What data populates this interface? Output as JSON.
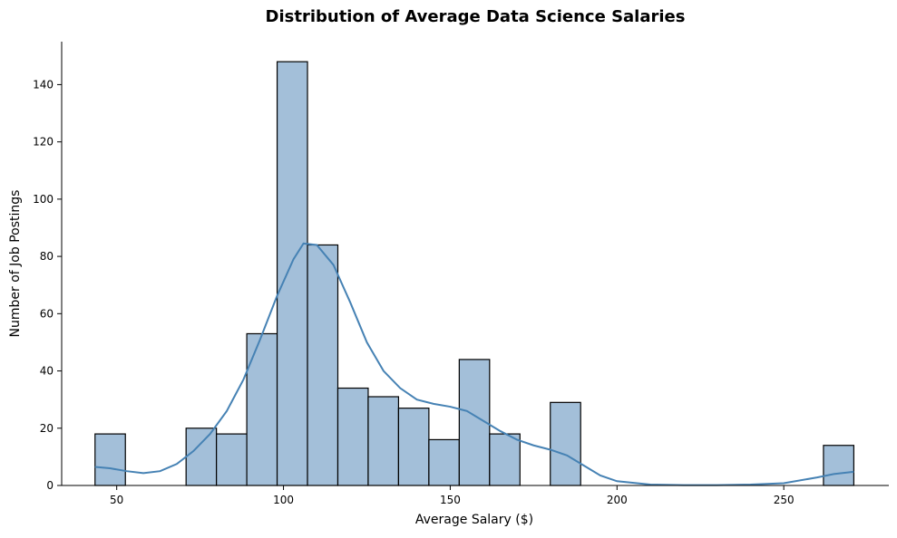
{
  "chart_data": {
    "type": "bar",
    "subtype": "histogram-with-kde",
    "title": "Distribution of Average Data Science Salaries",
    "xlabel": "Average Salary ($)",
    "ylabel": "Number of Job Postings",
    "xlim": [
      33.5,
      281.5
    ],
    "ylim": [
      0,
      155
    ],
    "xticks": [
      50,
      100,
      150,
      200,
      250
    ],
    "yticks": [
      0,
      20,
      40,
      60,
      80,
      100,
      120,
      140
    ],
    "grid": false,
    "bins": [
      {
        "x0": 43.5,
        "x1": 52.6,
        "count": 18
      },
      {
        "x0": 52.6,
        "x1": 61.7,
        "count": 0
      },
      {
        "x0": 61.7,
        "x1": 70.8,
        "count": 0
      },
      {
        "x0": 70.8,
        "x1": 79.9,
        "count": 20
      },
      {
        "x0": 79.9,
        "x1": 89.0,
        "count": 18
      },
      {
        "x0": 89.0,
        "x1": 98.1,
        "count": 53
      },
      {
        "x0": 98.1,
        "x1": 107.2,
        "count": 148
      },
      {
        "x0": 107.2,
        "x1": 116.3,
        "count": 84
      },
      {
        "x0": 116.3,
        "x1": 125.4,
        "count": 34
      },
      {
        "x0": 125.4,
        "x1": 134.5,
        "count": 31
      },
      {
        "x0": 134.5,
        "x1": 143.6,
        "count": 27
      },
      {
        "x0": 143.6,
        "x1": 152.7,
        "count": 16
      },
      {
        "x0": 152.7,
        "x1": 161.8,
        "count": 44
      },
      {
        "x0": 161.8,
        "x1": 170.9,
        "count": 18
      },
      {
        "x0": 170.9,
        "x1": 180.0,
        "count": 0
      },
      {
        "x0": 180.0,
        "x1": 189.1,
        "count": 29
      },
      {
        "x0": 189.1,
        "x1": 198.2,
        "count": 0
      },
      {
        "x0": 198.2,
        "x1": 207.3,
        "count": 0
      },
      {
        "x0": 207.3,
        "x1": 216.4,
        "count": 0
      },
      {
        "x0": 216.4,
        "x1": 225.5,
        "count": 0
      },
      {
        "x0": 225.5,
        "x1": 234.6,
        "count": 0
      },
      {
        "x0": 234.6,
        "x1": 243.7,
        "count": 0
      },
      {
        "x0": 243.7,
        "x1": 252.8,
        "count": 0
      },
      {
        "x0": 252.8,
        "x1": 261.9,
        "count": 0
      },
      {
        "x0": 261.9,
        "x1": 271.0,
        "count": 14
      }
    ],
    "kde": {
      "x": [
        43.5,
        48,
        53,
        58,
        63,
        68,
        73,
        78,
        83,
        88,
        93,
        98,
        103,
        106,
        110,
        115,
        120,
        125,
        130,
        135,
        140,
        145,
        150,
        155,
        160,
        165,
        170,
        175,
        180,
        185,
        190,
        195,
        200,
        210,
        220,
        230,
        240,
        250,
        260,
        265,
        271
      ],
      "y": [
        6.5,
        6,
        5,
        4.3,
        5,
        7.5,
        12,
        18,
        26,
        37,
        51,
        66,
        79,
        84.5,
        84,
        77,
        64,
        50,
        40,
        34,
        30,
        28.5,
        27.5,
        26,
        22.5,
        19,
        16,
        14,
        12.5,
        10.5,
        7,
        3.5,
        1.5,
        0.3,
        0.1,
        0.1,
        0.3,
        0.8,
        2.8,
        4,
        4.8
      ]
    },
    "colors": {
      "bar_fill": "#a3bfd9",
      "bar_edge": "#000000",
      "kde_line": "#4682b4"
    }
  }
}
